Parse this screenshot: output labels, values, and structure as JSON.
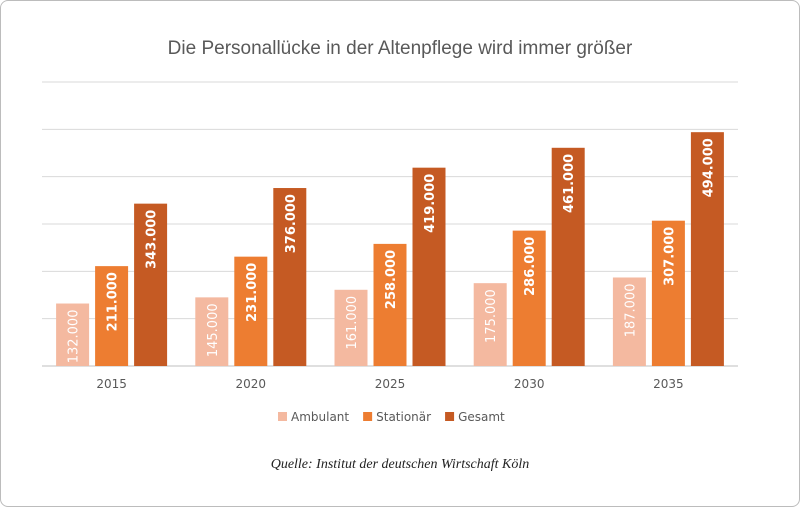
{
  "chart_data": {
    "type": "bar",
    "title": "Die Personallücke in der Altenpflege wird immer größer",
    "categories": [
      "2015",
      "2020",
      "2025",
      "2030",
      "2035"
    ],
    "series": [
      {
        "name": "Ambulant",
        "color": "#F4B9A0",
        "values": [
          132000,
          145000,
          161000,
          175000,
          187000
        ],
        "labels": [
          "132.000",
          "145.000",
          "161.000",
          "175.000",
          "187.000"
        ]
      },
      {
        "name": "Stationär",
        "color": "#ED7D31",
        "values": [
          211000,
          231000,
          258000,
          286000,
          307000
        ],
        "labels": [
          "211.000",
          "231.000",
          "258.000",
          "286.000",
          "307.000"
        ]
      },
      {
        "name": "Gesamt",
        "color": "#C55A23",
        "values": [
          343000,
          376000,
          419000,
          461000,
          494000
        ],
        "labels": [
          "343.000",
          "376.000",
          "419.000",
          "461.000",
          "494.000"
        ]
      }
    ],
    "ylim": [
      0,
      600000
    ],
    "ystep": 100000,
    "grid": true,
    "legend": "bottom",
    "source": "Quelle: Institut der deutschen Wirtschaft Köln"
  }
}
